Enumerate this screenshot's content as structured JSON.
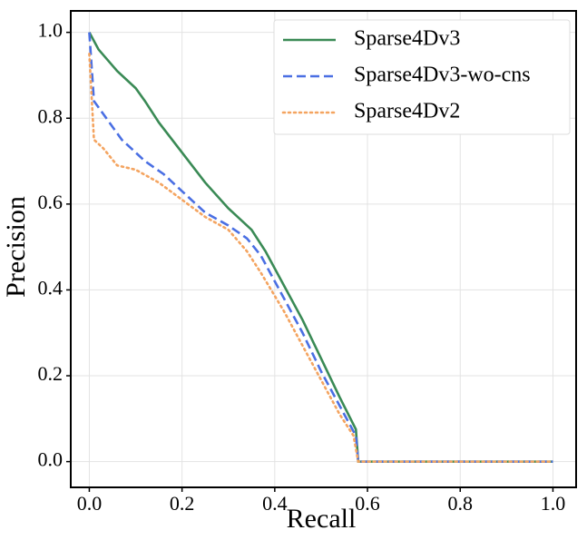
{
  "chart_data": {
    "type": "line",
    "x_label": "Recall",
    "y_label": "Precision",
    "xlim": [
      -0.04,
      1.05
    ],
    "ylim": [
      -0.06,
      1.05
    ],
    "xticks": [
      {
        "value": 0,
        "label": "0.0"
      },
      0.2,
      0.4,
      0.6,
      0.8,
      {
        "value": 1,
        "label": "1.0"
      }
    ],
    "yticks": [
      {
        "value": 0,
        "label": "0.0"
      },
      0.2,
      0.4,
      0.6,
      0.8,
      {
        "value": 1,
        "label": "1.0"
      }
    ],
    "grid": true,
    "legend": "upper right",
    "series": [
      {
        "name": "Sparse4Dv3",
        "color": "#3a8a55",
        "dash": "solid",
        "x": [
          0,
          0.005,
          0.02,
          0.06,
          0.1,
          0.12,
          0.15,
          0.2,
          0.25,
          0.3,
          0.35,
          0.38,
          0.42,
          0.46,
          0.5,
          0.54,
          0.575,
          0.58,
          1.0
        ],
        "values": [
          1.0,
          0.99,
          0.96,
          0.91,
          0.87,
          0.84,
          0.79,
          0.72,
          0.65,
          0.59,
          0.54,
          0.49,
          0.41,
          0.33,
          0.24,
          0.15,
          0.075,
          0,
          0
        ]
      },
      {
        "name": "Sparse4Dv3-wo-cns",
        "color": "#4a6fe3",
        "dash": "dashed",
        "x": [
          0,
          0.01,
          0.03,
          0.07,
          0.12,
          0.16,
          0.2,
          0.25,
          0.3,
          0.34,
          0.37,
          0.42,
          0.46,
          0.5,
          0.54,
          0.575,
          0.58,
          1.0
        ],
        "values": [
          1.0,
          0.84,
          0.81,
          0.75,
          0.7,
          0.67,
          0.63,
          0.58,
          0.55,
          0.52,
          0.48,
          0.38,
          0.3,
          0.21,
          0.13,
          0.06,
          0,
          0
        ]
      },
      {
        "name": "Sparse4Dv2",
        "color": "#f4a460",
        "dash": "dotted",
        "x": [
          0,
          0.01,
          0.03,
          0.06,
          0.1,
          0.15,
          0.2,
          0.25,
          0.3,
          0.34,
          0.37,
          0.42,
          0.46,
          0.5,
          0.54,
          0.57,
          0.58,
          1.0
        ],
        "values": [
          0.95,
          0.75,
          0.73,
          0.69,
          0.68,
          0.65,
          0.61,
          0.57,
          0.54,
          0.49,
          0.44,
          0.35,
          0.27,
          0.19,
          0.11,
          0.06,
          0,
          0
        ]
      }
    ]
  }
}
